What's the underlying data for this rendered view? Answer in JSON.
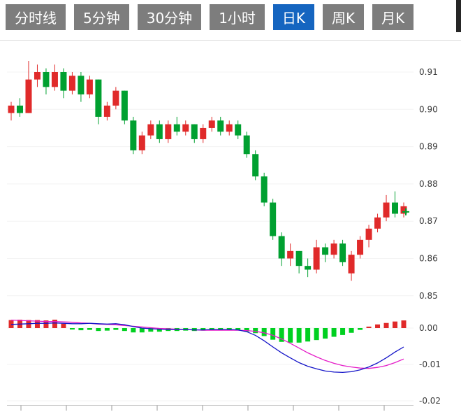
{
  "toolbar": {
    "active_bg": "#1565c0",
    "inactive_bg": "#7d7d7d",
    "tabs": [
      {
        "label": "分时线",
        "name": "tab-time-sharing-line",
        "active": false
      },
      {
        "label": "5分钟",
        "name": "tab-5-minute",
        "active": false
      },
      {
        "label": "30分钟",
        "name": "tab-30-minute",
        "active": false
      },
      {
        "label": "1小时",
        "name": "tab-1-hour",
        "active": false
      },
      {
        "label": "日K",
        "name": "tab-daily-k",
        "active": true
      },
      {
        "label": "周K",
        "name": "tab-weekly-k",
        "active": false
      },
      {
        "label": "月K",
        "name": "tab-monthly-k",
        "active": false
      }
    ]
  },
  "chart_data": {
    "type": "candlestick",
    "title": "",
    "legend_position": "none",
    "grid": "faint-horizontal",
    "price_axis_labels": [
      "0.91",
      "0.90",
      "0.89",
      "0.88",
      "0.87",
      "0.86",
      "0.85"
    ],
    "macd_axis_labels": [
      "0.00",
      "-0.01",
      "-0.02"
    ],
    "price_axis_range": [
      0.848,
      0.918
    ],
    "macd_axis_range": [
      -0.021,
      0.003
    ],
    "up_color": "#e02a2a",
    "down_color": "#00a030",
    "hist_up_color": "#e02a2a",
    "hist_down_color": "#00d020",
    "dif_color": "#1414c8",
    "dea_color": "#e51bc8",
    "axis_text_color": "#3c3c3c",
    "last_price_marker_color": "#00a030",
    "candles_ohlc": [
      [
        0.899,
        0.902,
        0.897,
        0.901
      ],
      [
        0.901,
        0.903,
        0.898,
        0.899
      ],
      [
        0.899,
        0.913,
        0.899,
        0.908
      ],
      [
        0.908,
        0.912,
        0.906,
        0.91
      ],
      [
        0.91,
        0.911,
        0.904,
        0.906
      ],
      [
        0.906,
        0.912,
        0.905,
        0.91
      ],
      [
        0.91,
        0.911,
        0.903,
        0.905
      ],
      [
        0.905,
        0.91,
        0.904,
        0.909
      ],
      [
        0.909,
        0.91,
        0.902,
        0.904
      ],
      [
        0.904,
        0.909,
        0.903,
        0.908
      ],
      [
        0.908,
        0.908,
        0.896,
        0.898
      ],
      [
        0.898,
        0.902,
        0.897,
        0.901
      ],
      [
        0.901,
        0.906,
        0.9,
        0.905
      ],
      [
        0.905,
        0.905,
        0.896,
        0.897
      ],
      [
        0.897,
        0.898,
        0.888,
        0.889
      ],
      [
        0.889,
        0.894,
        0.888,
        0.893
      ],
      [
        0.893,
        0.897,
        0.892,
        0.896
      ],
      [
        0.896,
        0.897,
        0.891,
        0.892
      ],
      [
        0.892,
        0.897,
        0.891,
        0.896
      ],
      [
        0.896,
        0.898,
        0.893,
        0.894
      ],
      [
        0.894,
        0.897,
        0.893,
        0.896
      ],
      [
        0.896,
        0.896,
        0.891,
        0.892
      ],
      [
        0.892,
        0.896,
        0.891,
        0.895
      ],
      [
        0.895,
        0.898,
        0.894,
        0.897
      ],
      [
        0.897,
        0.898,
        0.893,
        0.894
      ],
      [
        0.894,
        0.897,
        0.893,
        0.896
      ],
      [
        0.896,
        0.897,
        0.892,
        0.893
      ],
      [
        0.893,
        0.894,
        0.887,
        0.888
      ],
      [
        0.888,
        0.889,
        0.881,
        0.882
      ],
      [
        0.882,
        0.883,
        0.874,
        0.875
      ],
      [
        0.875,
        0.876,
        0.865,
        0.866
      ],
      [
        0.866,
        0.867,
        0.858,
        0.86
      ],
      [
        0.86,
        0.864,
        0.858,
        0.862
      ],
      [
        0.862,
        0.862,
        0.856,
        0.858
      ],
      [
        0.858,
        0.86,
        0.855,
        0.857
      ],
      [
        0.857,
        0.865,
        0.856,
        0.863
      ],
      [
        0.863,
        0.864,
        0.859,
        0.861
      ],
      [
        0.861,
        0.865,
        0.86,
        0.864
      ],
      [
        0.864,
        0.865,
        0.858,
        0.859
      ],
      [
        0.856,
        0.862,
        0.854,
        0.861
      ],
      [
        0.861,
        0.866,
        0.86,
        0.865
      ],
      [
        0.865,
        0.869,
        0.863,
        0.868
      ],
      [
        0.868,
        0.872,
        0.867,
        0.871
      ],
      [
        0.871,
        0.877,
        0.87,
        0.875
      ],
      [
        0.875,
        0.878,
        0.871,
        0.872
      ],
      [
        0.872,
        0.875,
        0.871,
        0.874
      ]
    ],
    "macd_histogram": [
      0.0022,
      0.0023,
      0.0022,
      0.0022,
      0.0021,
      0.0023,
      0.0012,
      -0.0004,
      -0.0006,
      -0.0005,
      -0.0008,
      -0.0007,
      -0.0005,
      -0.0008,
      -0.0012,
      -0.0012,
      -0.001,
      -0.001,
      -0.0008,
      -0.0008,
      -0.0007,
      -0.0008,
      -0.0007,
      -0.0006,
      -0.0006,
      -0.0005,
      -0.0006,
      -0.001,
      -0.0014,
      -0.0022,
      -0.0032,
      -0.0038,
      -0.004,
      -0.004,
      -0.0037,
      -0.0033,
      -0.0029,
      -0.0024,
      -0.0019,
      -0.0013,
      -0.0005,
      0.0004,
      0.001,
      0.0014,
      0.0018,
      0.0021
    ],
    "dif_line": [
      0.001,
      0.0011,
      0.0012,
      0.0013,
      0.0013,
      0.0014,
      0.0013,
      0.0012,
      0.0012,
      0.0013,
      0.0012,
      0.0011,
      0.0012,
      0.0009,
      0.0004,
      0.0,
      -0.0002,
      -0.0003,
      -0.0004,
      -0.0004,
      -0.0004,
      -0.0005,
      -0.0005,
      -0.0004,
      -0.0004,
      -0.0004,
      -0.0005,
      -0.001,
      -0.002,
      -0.0035,
      -0.0052,
      -0.0068,
      -0.0082,
      -0.0095,
      -0.0105,
      -0.0112,
      -0.0118,
      -0.0121,
      -0.0122,
      -0.012,
      -0.0115,
      -0.0107,
      -0.0096,
      -0.0082,
      -0.0066,
      -0.0052
    ],
    "dea_line": [
      0.0022,
      0.0021,
      0.002,
      0.0019,
      0.0018,
      0.0018,
      0.0017,
      0.0016,
      0.0014,
      0.0013,
      0.0011,
      0.001,
      0.0009,
      0.0007,
      0.0005,
      0.0003,
      0.0001,
      -0.0001,
      -0.0002,
      -0.0003,
      -0.0004,
      -0.0005,
      -0.0006,
      -0.0006,
      -0.0006,
      -0.0006,
      -0.0006,
      -0.0007,
      -0.0009,
      -0.0013,
      -0.002,
      -0.003,
      -0.0042,
      -0.0055,
      -0.0068,
      -0.0079,
      -0.0089,
      -0.0097,
      -0.0103,
      -0.0107,
      -0.011,
      -0.0111,
      -0.0108,
      -0.0103,
      -0.0095,
      -0.0085
    ]
  }
}
